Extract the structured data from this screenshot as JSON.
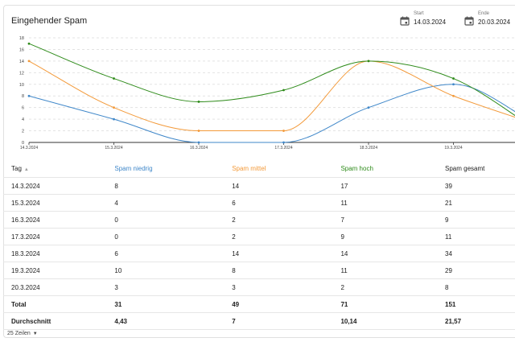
{
  "title": "Eingehender Spam",
  "start": {
    "label": "Start",
    "value": "14.03.2024",
    "icon": "calendar-icon"
  },
  "end": {
    "label": "Ende",
    "value": "20.03.2024",
    "icon": "calendar-icon"
  },
  "chart_data": {
    "type": "line",
    "x": [
      "14.3.2024",
      "15.3.2024",
      "16.3.2024",
      "17.3.2024",
      "18.3.2024",
      "19.3.2024",
      "20.3.2024"
    ],
    "x_ticks": [
      "14.3.2024",
      "15.3.2024",
      "16.3.2024",
      "17.3.2024",
      "18.3.2024",
      "19.3.2024"
    ],
    "y_ticks": [
      0,
      2,
      4,
      6,
      8,
      10,
      12,
      14,
      16,
      18
    ],
    "ylim": [
      0,
      18
    ],
    "grid": true,
    "curve": "smooth",
    "series": [
      {
        "name": "Spam niedrig",
        "color": "#3f87c9",
        "values": [
          8,
          4,
          0,
          0,
          6,
          10,
          3
        ]
      },
      {
        "name": "Spam mittel",
        "color": "#f39a3a",
        "values": [
          14,
          6,
          2,
          2,
          14,
          8,
          3
        ]
      },
      {
        "name": "Spam hoch",
        "color": "#2e8b1a",
        "values": [
          17,
          11,
          7,
          9,
          14,
          11,
          2
        ]
      }
    ]
  },
  "table": {
    "headers": [
      "Tag",
      "Spam niedrig",
      "Spam mittel",
      "Spam hoch",
      "Spam gesamt"
    ],
    "rows": [
      [
        "14.3.2024",
        "8",
        "14",
        "17",
        "39"
      ],
      [
        "15.3.2024",
        "4",
        "6",
        "11",
        "21"
      ],
      [
        "16.3.2024",
        "0",
        "2",
        "7",
        "9"
      ],
      [
        "17.3.2024",
        "0",
        "2",
        "9",
        "11"
      ],
      [
        "18.3.2024",
        "6",
        "14",
        "14",
        "34"
      ],
      [
        "19.3.2024",
        "10",
        "8",
        "11",
        "29"
      ],
      [
        "20.3.2024",
        "3",
        "3",
        "2",
        "8"
      ],
      [
        "Total",
        "31",
        "49",
        "71",
        "151"
      ],
      [
        "Durchschnitt",
        "4,43",
        "7",
        "10,14",
        "21,57"
      ]
    ]
  },
  "rows_per_page": "25 Zeilen"
}
